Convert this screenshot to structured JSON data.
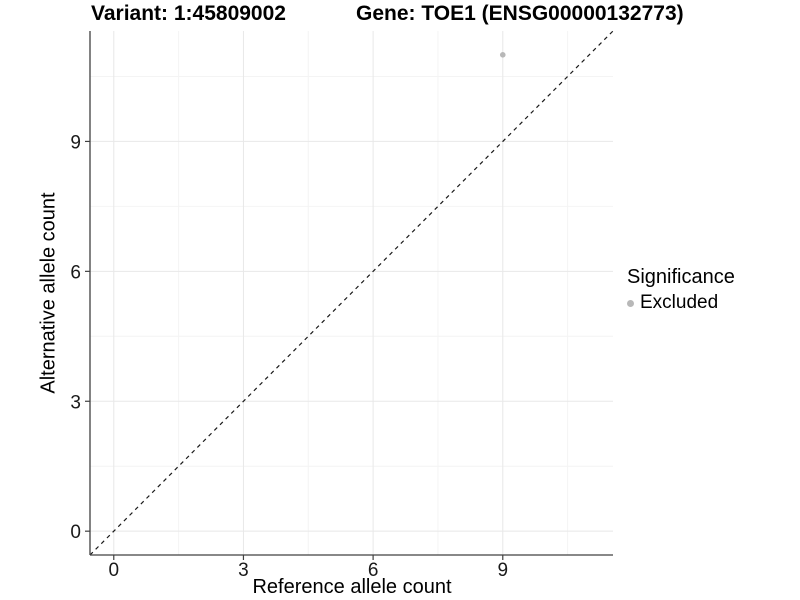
{
  "chart_data": {
    "type": "scatter",
    "titles": {
      "variant": "Variant: 1:45809002",
      "gene": "Gene: TOE1 (ENSG00000132773)"
    },
    "xlabel": "Reference allele count",
    "ylabel": "Alternative allele count",
    "x_range": [
      -0.55,
      11.55
    ],
    "y_range": [
      -0.55,
      11.55
    ],
    "x_major_ticks": [
      0,
      3,
      6,
      9
    ],
    "y_major_ticks": [
      0,
      3,
      6,
      9
    ],
    "x_minor_ticks": [
      1.5,
      4.5,
      7.5,
      10.5
    ],
    "y_minor_ticks": [
      1.5,
      4.5,
      7.5,
      10.5
    ],
    "points": [
      {
        "x": 9,
        "y": 11,
        "significance": "Excluded"
      }
    ],
    "reference_line": {
      "type": "identity",
      "from": [
        -0.55,
        -0.55
      ],
      "to": [
        11.55,
        11.55
      ],
      "style": "dashed"
    },
    "legend": {
      "title": "Significance",
      "position": "right",
      "entries": [
        {
          "label": "Excluded",
          "color": "#b8b8b8",
          "marker": "circle"
        }
      ]
    },
    "colors": {
      "point": "#b8b8b8",
      "reference_line": "#1a1a1a",
      "axis_line": "#404040",
      "tick_mark": "#404040",
      "tick_label": "#1a1a1a",
      "grid_major": "#e8e8e8",
      "grid_minor": "#f4f4f4",
      "background": "#ffffff"
    }
  }
}
